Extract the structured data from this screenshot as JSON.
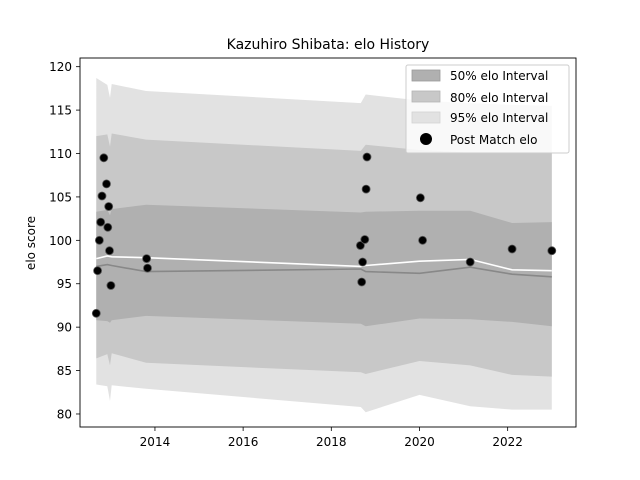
{
  "chart_data": {
    "type": "scatter",
    "title": "Kazuhiro Shibata: elo History",
    "xlabel": "",
    "ylabel": "elo score",
    "xlim": [
      2012.3,
      2023.55
    ],
    "ylim": [
      78.5,
      121
    ],
    "x_ticks": [
      2014,
      2016,
      2018,
      2020,
      2022
    ],
    "y_ticks": [
      80,
      85,
      90,
      95,
      100,
      105,
      110,
      115,
      120
    ],
    "grid": false,
    "legend_position": "top-right",
    "legend": [
      {
        "label": "50% elo Interval",
        "kind": "patch",
        "color": "#b0b0b0"
      },
      {
        "label": "80% elo Interval",
        "kind": "patch",
        "color": "#c8c8c8"
      },
      {
        "label": "95% elo Interval",
        "kind": "patch",
        "color": "#e2e2e2"
      },
      {
        "label": "Post Match elo",
        "kind": "marker",
        "color": "#000000"
      }
    ],
    "intervals": {
      "x": [
        2012.67,
        2012.92,
        2012.98,
        2013.02,
        2013.8,
        2018.67,
        2018.78,
        2020.0,
        2021.15,
        2022.1,
        2023.0
      ],
      "p95_upper": [
        118.7,
        117.9,
        116.4,
        118.0,
        117.2,
        115.8,
        116.8,
        116.1,
        115.8,
        115.6,
        115.5
      ],
      "p95_lower": [
        83.4,
        83.2,
        81.5,
        83.3,
        82.9,
        80.8,
        80.2,
        82.2,
        80.9,
        80.5,
        80.5
      ],
      "p80_upper": [
        112.0,
        112.2,
        110.8,
        112.3,
        111.6,
        110.3,
        111.0,
        110.4,
        110.1,
        110.0,
        110.0
      ],
      "p80_lower": [
        86.4,
        86.9,
        85.6,
        87.0,
        85.9,
        84.8,
        84.6,
        86.1,
        85.6,
        84.5,
        84.3
      ],
      "p50_upper": [
        103.3,
        103.5,
        102.9,
        103.6,
        104.1,
        103.2,
        103.3,
        103.4,
        103.4,
        102.0,
        102.1
      ],
      "p50_lower": [
        90.8,
        90.7,
        90.5,
        90.8,
        91.3,
        90.4,
        90.1,
        91.0,
        90.9,
        90.6,
        90.1
      ]
    },
    "series": [
      {
        "name": "",
        "kind": "line",
        "color": "#888888",
        "x": [
          2012.67,
          2012.92,
          2013.02,
          2013.8,
          2018.67,
          2018.78,
          2020.0,
          2021.15,
          2022.1,
          2023.0
        ],
        "y": [
          97.0,
          97.2,
          97.1,
          96.4,
          96.7,
          96.4,
          96.2,
          96.9,
          96.1,
          95.8
        ]
      },
      {
        "name": "",
        "kind": "line",
        "color": "#ffffff",
        "x": [
          2012.67,
          2012.92,
          2013.02,
          2013.8,
          2018.67,
          2018.78,
          2020.0,
          2021.15,
          2022.1,
          2023.0
        ],
        "y": [
          97.9,
          98.2,
          98.1,
          98.0,
          97.0,
          97.1,
          97.6,
          97.8,
          96.6,
          96.5
        ]
      },
      {
        "name": "Post Match elo",
        "kind": "scatter",
        "color": "#000000",
        "x": [
          2012.67,
          2012.7,
          2012.74,
          2012.77,
          2012.8,
          2012.84,
          2012.9,
          2012.93,
          2012.95,
          2012.97,
          2013.0,
          2013.81,
          2013.83,
          2018.66,
          2018.69,
          2018.71,
          2018.76,
          2018.79,
          2018.81,
          2020.02,
          2020.07,
          2021.15,
          2022.1,
          2023.0
        ],
        "y": [
          91.6,
          96.5,
          100.0,
          102.1,
          105.1,
          109.5,
          106.5,
          101.5,
          103.9,
          98.8,
          94.8,
          97.9,
          96.8,
          99.4,
          95.2,
          97.5,
          100.1,
          105.9,
          109.6,
          104.9,
          100.0,
          97.5,
          99.0,
          98.8
        ]
      }
    ]
  }
}
